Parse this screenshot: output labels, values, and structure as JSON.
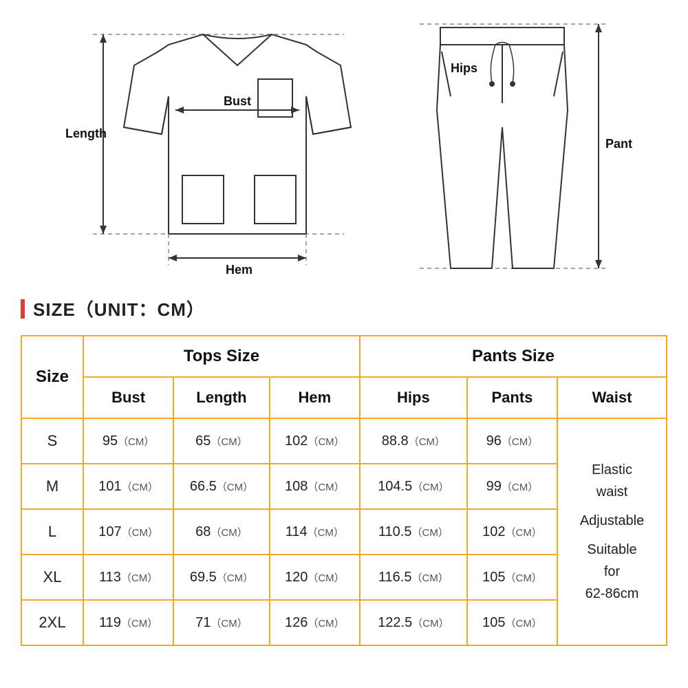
{
  "title": "SIZE（UNIT：CM）",
  "diagram_labels": {
    "bust": "Bust",
    "length": "Length",
    "hem": "Hem",
    "hips": "Hips",
    "pant": "Pant"
  },
  "table": {
    "group_headers": {
      "tops": "Tops Size",
      "pants": "Pants Size"
    },
    "columns": [
      "Size",
      "Bust",
      "Length",
      "Hem",
      "Hips",
      "Pants",
      "Waist"
    ],
    "rows": [
      {
        "size": "S",
        "bust": "95（CM）",
        "length": "65（CM）",
        "hem": "102（CM）",
        "hips": "88.8（CM）",
        "pants": "96（CM）"
      },
      {
        "size": "M",
        "bust": "101（CM）",
        "length": "66.5（CM）",
        "hem": "108（CM）",
        "hips": "104.5（CM）",
        "pants": "99（CM）"
      },
      {
        "size": "L",
        "bust": "107（CM）",
        "length": "68（CM）",
        "hem": "114（CM）",
        "hips": "110.5（CM）",
        "pants": "102（CM）"
      },
      {
        "size": "XL",
        "bust": "113（CM）",
        "length": "69.5（CM）",
        "hem": "120（CM）",
        "hips": "116.5（CM）",
        "pants": "105（CM）"
      },
      {
        "size": "2XL",
        "bust": "119（CM）",
        "length": "71（CM）",
        "hem": "126（CM）",
        "hips": "122.5（CM）",
        "pants": "105（CM）"
      }
    ],
    "waist_lines": [
      "Elastic",
      "waist",
      "",
      "Adjustable",
      "",
      "Suitable",
      "for",
      "62-86cm"
    ]
  },
  "colors": {
    "border": "#f5a623",
    "accent": "#e53935",
    "line": "#333333",
    "dash": "#888888"
  }
}
